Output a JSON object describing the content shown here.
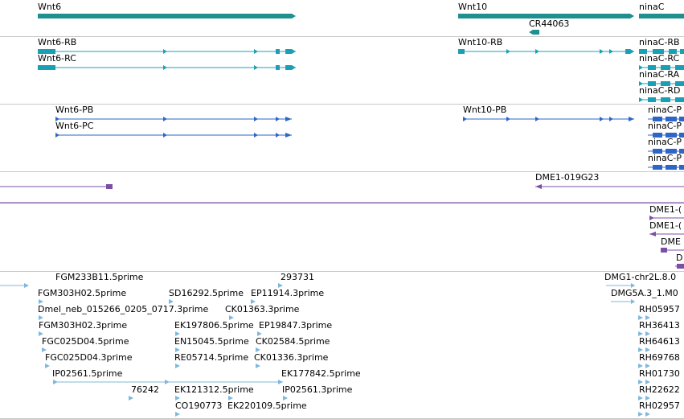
{
  "genes": {
    "wnt6": "Wnt6",
    "wnt10": "Wnt10",
    "ninaC": "ninaC",
    "cr44063": "CR44063"
  },
  "transcripts": {
    "wnt6_rb": "Wnt6-RB",
    "wnt6_rc": "Wnt6-RC",
    "wnt10_rb": "Wnt10-RB",
    "ninaC_rb": "ninaC-RB",
    "ninaC_rc": "ninaC-RC",
    "ninaC_ra": "ninaC-RA",
    "ninaC_rd": "ninaC-RD"
  },
  "proteins": {
    "wnt6_pb": "Wnt6-PB",
    "wnt6_pc": "Wnt6-PC",
    "wnt10_pb": "Wnt10-PB",
    "ninaC_p1": "ninaC-P",
    "ninaC_p2": "ninaC-P",
    "ninaC_p3": "ninaC-P",
    "ninaC_p4": "ninaC-P"
  },
  "clones": {
    "dme1_019g23": "DME1-019G23",
    "dme1_a": "DME1-(",
    "dme1_b": "DME1-(",
    "dme_c": "DME",
    "d_d": "D"
  },
  "ests": {
    "e1": "FGM233B11.5prime",
    "e2": "293731",
    "e3": "FGM303H02.5prime",
    "e4": "SD16292.5prime",
    "e5": "EP11914.3prime",
    "e6": "Dmel_neb_015266_0205_0717.3prime",
    "e7": "CK01363.3prime",
    "e8": "FGM303H02.3prime",
    "e9": "EK197806.5prime",
    "e10": "EP19847.3prime",
    "e11": "FGC025D04.5prime",
    "e12": "EN15045.5prime",
    "e13": "CK02584.5prime",
    "e14": "FGC025D04.3prime",
    "e15": "RE05714.5prime",
    "e16": "CK01336.3prime",
    "e17": "IP02561.5prime",
    "e18": "EK177842.5prime",
    "e19": "76242",
    "e20": "EK121312.5prime",
    "e21": "IP02561.3prime",
    "e22": "CO190773",
    "e23": "EK220109.5prime",
    "e24": "DMG1-chr2L.8.0",
    "e25": "DMG5A.3_1.M0",
    "e26": "RH05957",
    "e27": "RH36413",
    "e28": "RH64613",
    "e29": "RH69768",
    "e30": "RH01730",
    "e31": "RH22622",
    "e32": "RH02957"
  },
  "colors": {
    "gene": "#1f8f8f",
    "transcript": "#1aa0b4",
    "protein": "#2d66c8",
    "clone": "#7b4fa8",
    "est": "#7fb8dc",
    "separator": "#c8c8c8"
  }
}
